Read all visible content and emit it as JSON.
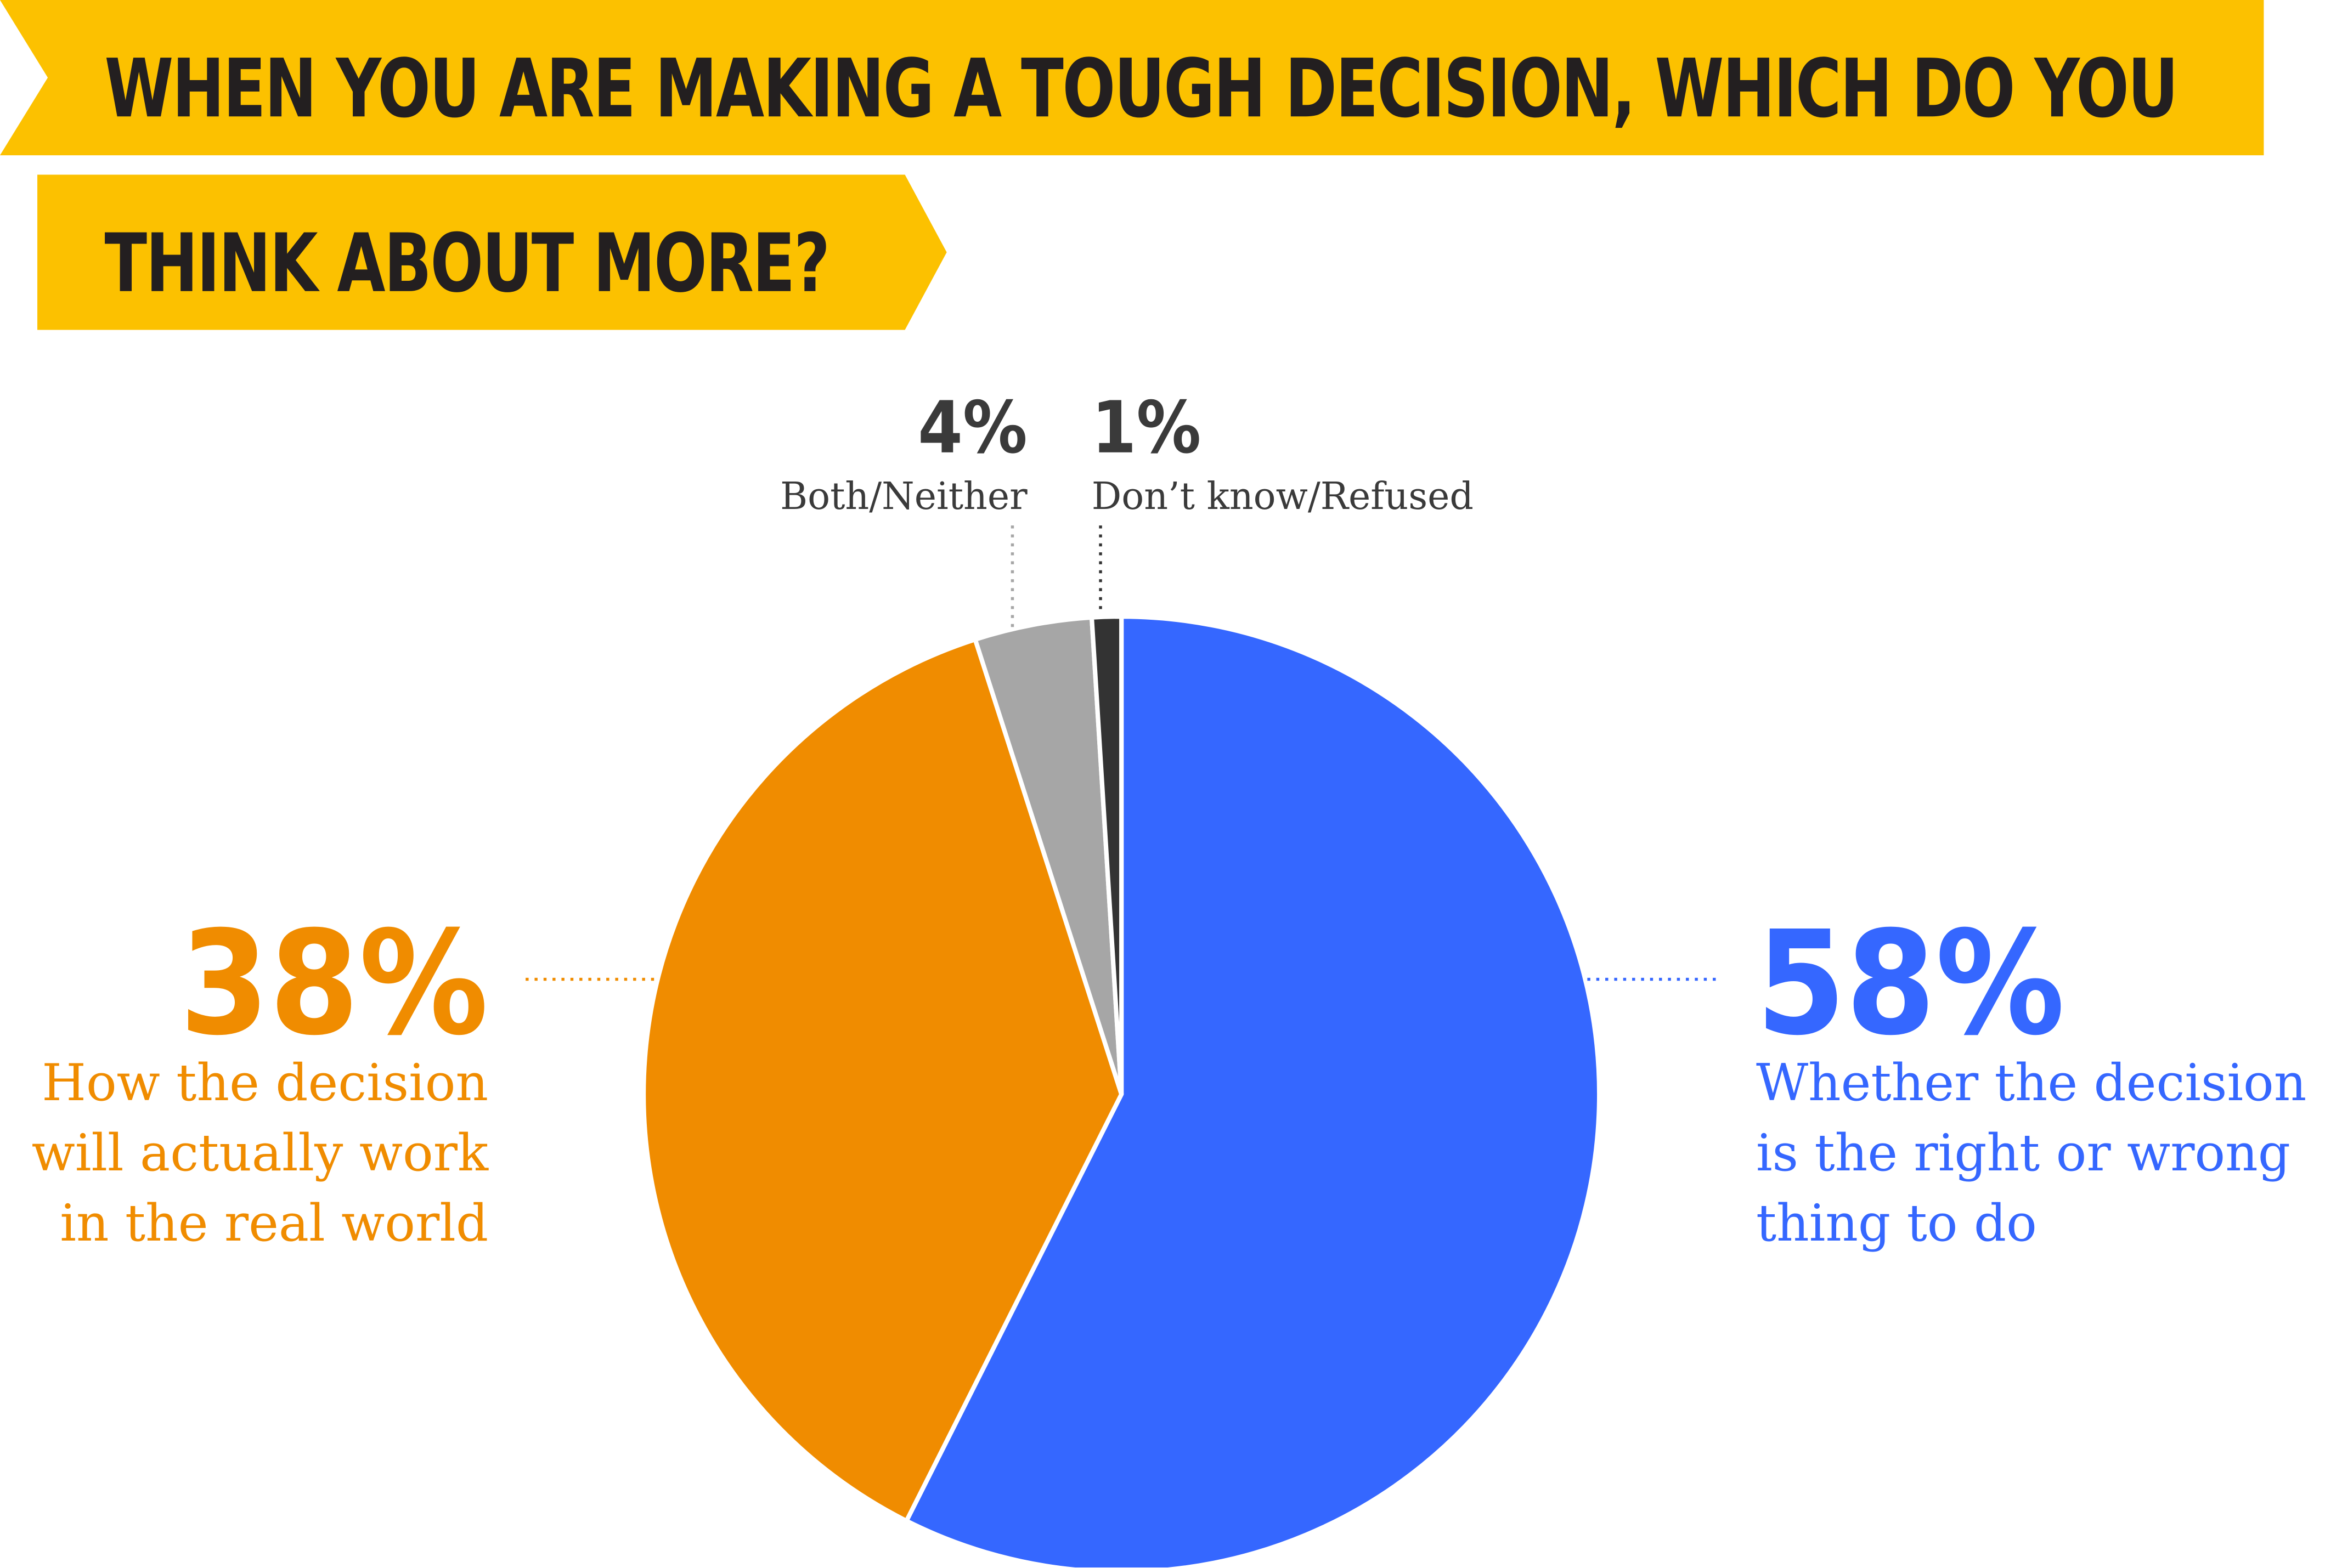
{
  "title": {
    "line1": "WHEN YOU ARE MAKING A TOUGH DECISION, WHICH DO YOU",
    "line2": "THINK ABOUT MORE?"
  },
  "colors": {
    "banner": "#fcc100",
    "title_text": "#231f20",
    "blue": "#3567ff",
    "orange": "#f08c00",
    "gray": "#a6a6a6",
    "dark": "#333333",
    "label_dark": "#3a3a3a"
  },
  "chart_data": {
    "type": "pie",
    "title": "WHEN YOU ARE MAKING A TOUGH DECISION, WHICH DO YOU THINK ABOUT MORE?",
    "start": "12 o'clock, clockwise",
    "slices": [
      {
        "key": "right_wrong",
        "value": 58,
        "pct_label": "58%",
        "label": "Whether the decision is the right or wrong thing to do",
        "color": "#3567ff"
      },
      {
        "key": "real_world",
        "value": 38,
        "pct_label": "38%",
        "label": "How the decision will actually work in the real world",
        "color": "#f08c00"
      },
      {
        "key": "both_neither",
        "value": 4,
        "pct_label": "4%",
        "label": "Both/Neither",
        "color": "#a6a6a6"
      },
      {
        "key": "dont_know",
        "value": 1,
        "pct_label": "1%",
        "label": "Don’t know/Refused",
        "color": "#333333"
      }
    ]
  },
  "labels": {
    "right_wrong": {
      "pct": "58%",
      "lines": [
        "Whether the decision",
        "is the right or wrong",
        "thing to do"
      ]
    },
    "real_world": {
      "pct": "38%",
      "lines": [
        "How the decision",
        "will actually work",
        "in the real world"
      ]
    },
    "both_neither": {
      "pct": "4%",
      "text": "Both/Neither"
    },
    "dont_know": {
      "pct": "1%",
      "text": "Don’t know/Refused"
    }
  }
}
